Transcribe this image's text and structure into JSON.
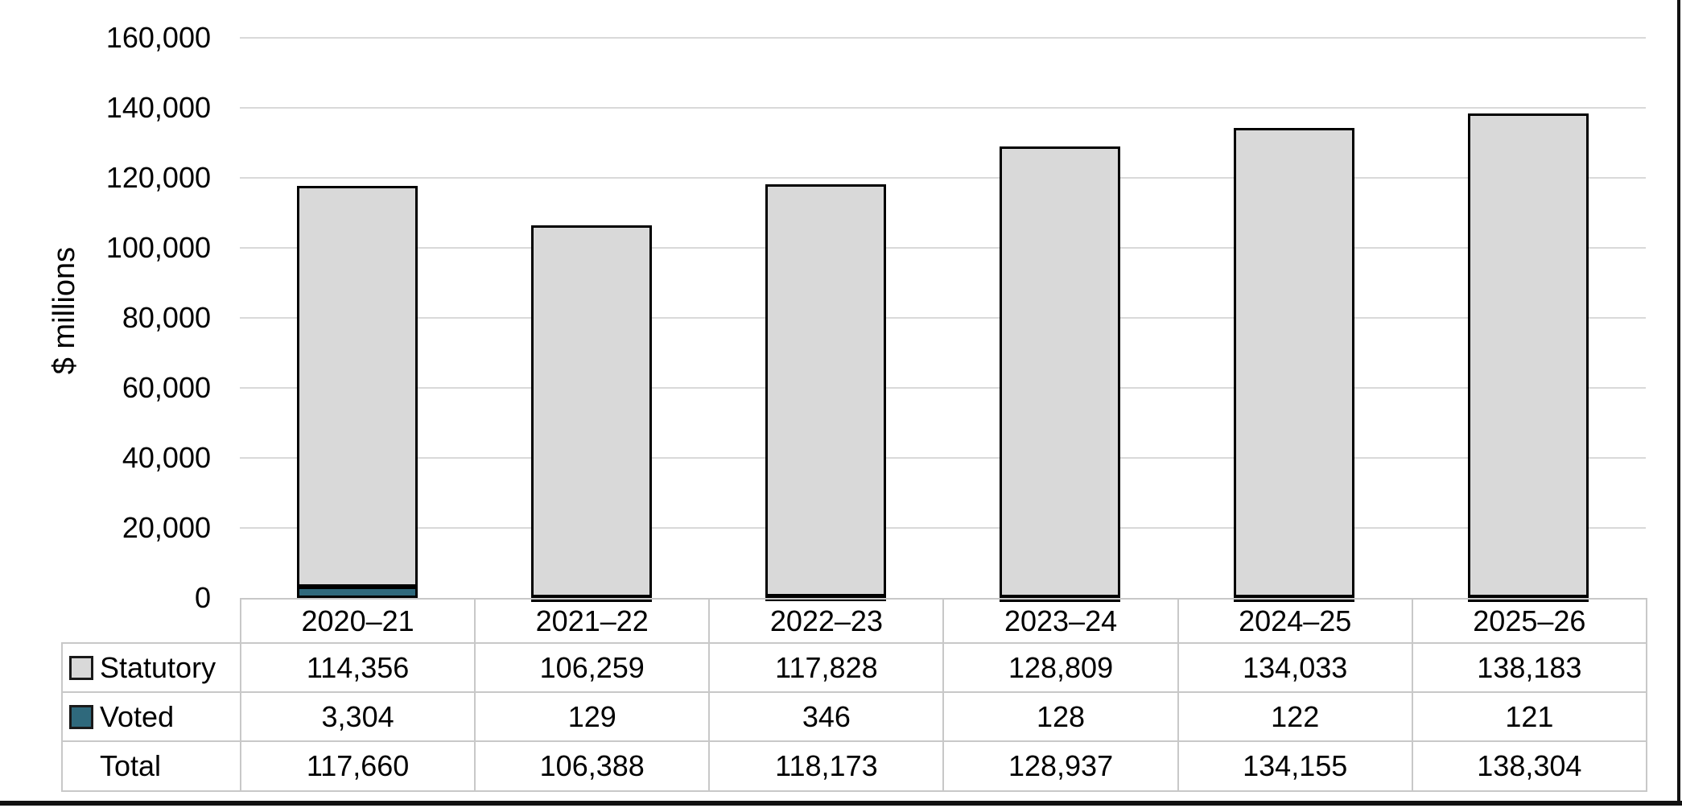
{
  "chart_data": {
    "type": "bar",
    "stacked": true,
    "title": "",
    "ylabel": "$ millions",
    "xlabel": "",
    "grid": true,
    "legend_position": "table-left",
    "categories": [
      "2020–21",
      "2021–22",
      "2022–23",
      "2023–24",
      "2024–25",
      "2025–26"
    ],
    "series": [
      {
        "name": "Statutory",
        "color": "#d9d9d9",
        "values": [
          114356,
          106259,
          117828,
          128809,
          134033,
          138183
        ]
      },
      {
        "name": "Voted",
        "color": "#2f697c",
        "values": [
          3304,
          129,
          346,
          128,
          122,
          121
        ]
      }
    ],
    "totals": {
      "label": "Total",
      "values": [
        117660,
        106388,
        118173,
        128937,
        134155,
        138304
      ]
    },
    "y_axis": {
      "min": 0,
      "max": 160000,
      "tick_step": 20000,
      "tick_labels": [
        "0",
        "20,000",
        "40,000",
        "60,000",
        "80,000",
        "100,000",
        "120,000",
        "140,000",
        "160,000"
      ]
    },
    "colors": {
      "bar_border": "#000000",
      "gridline": "#d9d9d9",
      "table_border": "#c8c8c8",
      "text": "#000000"
    }
  }
}
